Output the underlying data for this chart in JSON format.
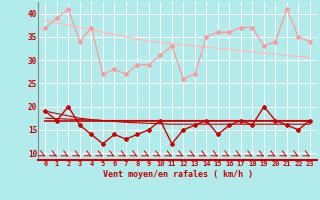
{
  "xlabel": "Vent moyen/en rafales ( km/h )",
  "background_color": "#b2ebeb",
  "grid_color": "#ffffff",
  "x": [
    0,
    1,
    2,
    3,
    4,
    5,
    6,
    7,
    8,
    9,
    10,
    11,
    12,
    13,
    14,
    15,
    16,
    17,
    18,
    19,
    20,
    21,
    22,
    23
  ],
  "rafales_data": [
    37,
    39,
    41,
    34,
    37,
    27,
    28,
    27,
    29,
    29,
    31,
    33,
    26,
    27,
    35,
    36,
    36,
    37,
    37,
    33,
    34,
    41,
    35,
    34
  ],
  "rafales_trend": [
    38.5,
    38.0,
    37.5,
    37.0,
    36.5,
    36.0,
    35.5,
    35.0,
    34.5,
    34.0,
    33.8,
    33.5,
    33.3,
    33.0,
    32.8,
    32.5,
    32.3,
    32.0,
    31.8,
    31.5,
    31.3,
    31.0,
    30.8,
    30.5
  ],
  "moyen_data": [
    19,
    17,
    20,
    16,
    14,
    12,
    14,
    13,
    14,
    15,
    17,
    12,
    15,
    16,
    17,
    14,
    16,
    17,
    16,
    20,
    17,
    16,
    15,
    17
  ],
  "moyen_trend1": [
    19.0,
    18.5,
    18.0,
    17.5,
    17.2,
    17.0,
    16.8,
    16.6,
    16.5,
    16.4,
    16.3,
    16.2,
    16.2,
    16.2,
    16.2,
    16.2,
    16.2,
    16.2,
    16.2,
    16.2,
    16.2,
    16.2,
    16.2,
    16.2
  ],
  "moyen_trend2": [
    17.5,
    17.4,
    17.3,
    17.2,
    17.1,
    17.0,
    17.0,
    17.0,
    17.0,
    17.0,
    17.0,
    17.0,
    17.0,
    17.0,
    17.0,
    17.0,
    17.0,
    17.0,
    17.0,
    17.0,
    17.0,
    17.0,
    17.0,
    17.0
  ],
  "moyen_trend3": [
    17.0,
    17.0,
    17.0,
    17.0,
    17.0,
    17.0,
    17.0,
    17.0,
    17.0,
    17.0,
    17.0,
    17.0,
    17.0,
    17.0,
    17.0,
    17.0,
    17.0,
    17.0,
    17.0,
    17.0,
    17.0,
    17.0,
    17.0,
    17.0
  ],
  "ylim": [
    8.5,
    42.5
  ],
  "yticks": [
    10,
    15,
    20,
    25,
    30,
    35,
    40
  ],
  "arrow_color": "#cc0000",
  "rafales_color": "#ff9999",
  "moyen_color": "#cc0000",
  "trend_rafales_color": "#ffbbbb",
  "trend_moyen_color": "#cc0000"
}
